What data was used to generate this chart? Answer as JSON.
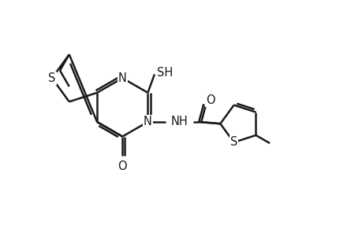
{
  "background_color": "#ffffff",
  "line_color": "#1a1a1a",
  "line_width": 1.8,
  "font_size": 10.5,
  "fig_width": 4.6,
  "fig_height": 3.0,
  "dpi": 100,
  "xlim": [
    0,
    10
  ],
  "ylim": [
    0,
    6.5
  ]
}
